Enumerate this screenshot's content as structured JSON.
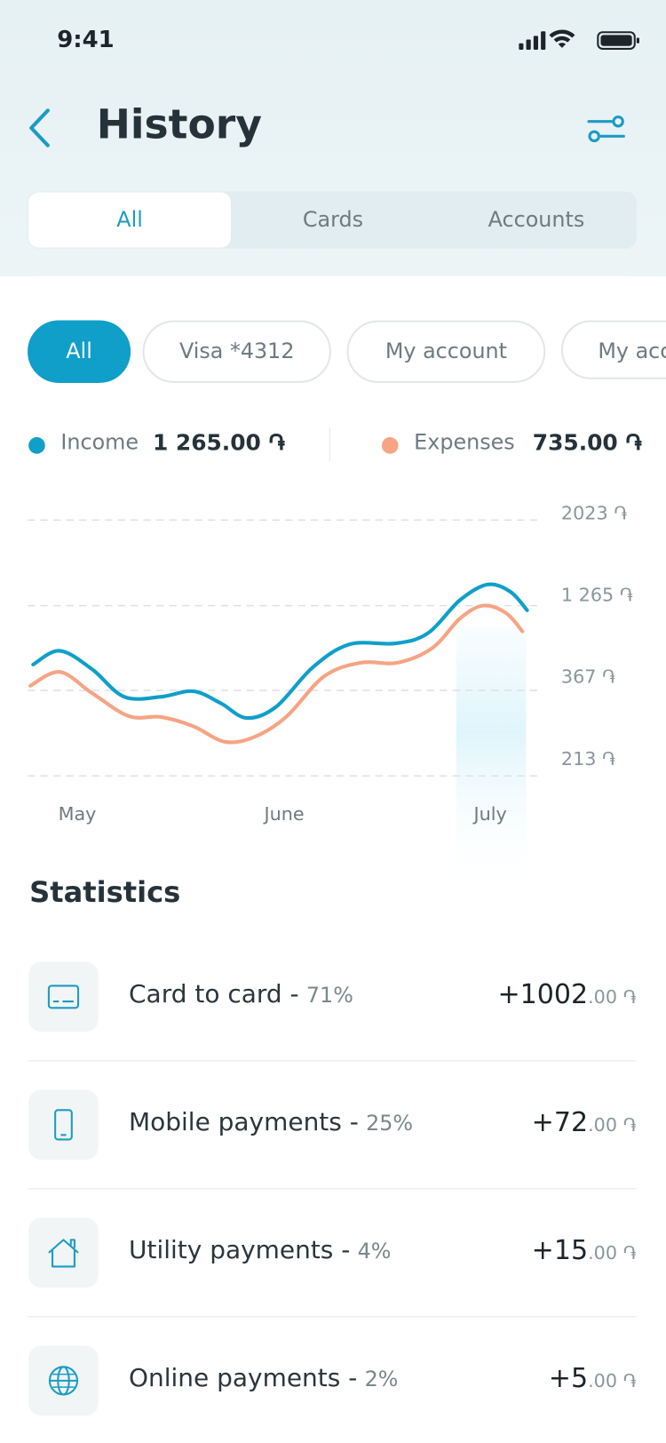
{
  "status": {
    "time": "9:41"
  },
  "header": {
    "title": "History"
  },
  "tabs": [
    "All",
    "Cards",
    "Accounts"
  ],
  "filters": [
    "All",
    "Visa *4312",
    "My account",
    "My account"
  ],
  "summary": {
    "income_label": "Income",
    "income_value": "1 265.00 ֏",
    "expenses_label": "Expenses",
    "expenses_value": "735.00 ֏"
  },
  "chart": {
    "y_labels": [
      "2023 ֏",
      "1 265 ֏",
      "367 ֏",
      "213 ֏"
    ],
    "x_labels": [
      "May",
      "June",
      "July"
    ]
  },
  "statistics": {
    "title": "Statistics",
    "items": [
      {
        "name": "Card to card -",
        "percent": "71%",
        "amount": "+1002",
        "decimals": ".00 ֏"
      },
      {
        "name": "Mobile payments -",
        "percent": "25%",
        "amount": "+72",
        "decimals": ".00 ֏"
      },
      {
        "name": "Utility payments -",
        "percent": "4%",
        "amount": "+15",
        "decimals": ".00 ֏"
      },
      {
        "name": "Online payments -",
        "percent": "2%",
        "amount": "+5",
        "decimals": ".00 ֏"
      }
    ]
  }
}
